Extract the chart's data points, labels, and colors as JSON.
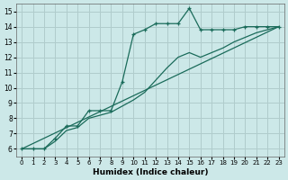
{
  "xlabel": "Humidex (Indice chaleur)",
  "background_color": "#cce8e8",
  "grid_color": "#b0cccc",
  "line_color": "#1a6b5a",
  "xlim": [
    -0.5,
    23.5
  ],
  "ylim": [
    5.5,
    15.5
  ],
  "yticks": [
    6,
    7,
    8,
    9,
    10,
    11,
    12,
    13,
    14,
    15
  ],
  "xticks": [
    0,
    1,
    2,
    3,
    4,
    5,
    6,
    7,
    8,
    9,
    10,
    11,
    12,
    13,
    14,
    15,
    16,
    17,
    18,
    19,
    20,
    21,
    22,
    23
  ],
  "series1_x": [
    0,
    1,
    2,
    3,
    4,
    5,
    6,
    7,
    8,
    9,
    10,
    11,
    12,
    13,
    14,
    15,
    16,
    17,
    18,
    19,
    20,
    21,
    22,
    23
  ],
  "series1_y": [
    6.0,
    6.0,
    6.0,
    6.7,
    7.5,
    7.5,
    8.5,
    8.5,
    8.5,
    10.4,
    13.5,
    13.8,
    14.2,
    14.2,
    14.2,
    15.2,
    13.8,
    13.8,
    13.8,
    13.8,
    14.0,
    14.0,
    14.0,
    14.0
  ],
  "series2_x": [
    0,
    1,
    2,
    3,
    4,
    5,
    6,
    7,
    8,
    9,
    10,
    11,
    12,
    13,
    14,
    15,
    16,
    17,
    18,
    19,
    20,
    21,
    22,
    23
  ],
  "series2_y": [
    6.0,
    6.0,
    6.0,
    6.5,
    7.2,
    7.4,
    8.0,
    8.2,
    8.4,
    8.8,
    9.2,
    9.7,
    10.5,
    11.3,
    12.0,
    12.3,
    12.0,
    12.3,
    12.6,
    13.0,
    13.3,
    13.6,
    13.8,
    14.0
  ],
  "series3_x": [
    0,
    23
  ],
  "series3_y": [
    6.0,
    14.0
  ]
}
